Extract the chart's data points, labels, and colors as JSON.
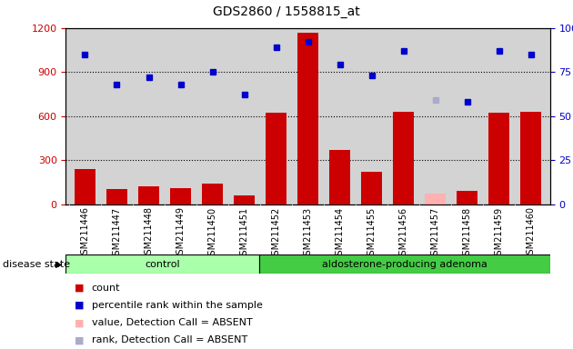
{
  "title": "GDS2860 / 1558815_at",
  "samples": [
    "GSM211446",
    "GSM211447",
    "GSM211448",
    "GSM211449",
    "GSM211450",
    "GSM211451",
    "GSM211452",
    "GSM211453",
    "GSM211454",
    "GSM211455",
    "GSM211456",
    "GSM211457",
    "GSM211458",
    "GSM211459",
    "GSM211460"
  ],
  "count_values": [
    240,
    100,
    120,
    110,
    140,
    60,
    620,
    1170,
    370,
    220,
    630,
    75,
    90,
    620,
    630
  ],
  "count_absent": [
    false,
    false,
    false,
    false,
    false,
    false,
    false,
    false,
    false,
    false,
    false,
    true,
    false,
    false,
    false
  ],
  "rank_values": [
    85,
    68,
    72,
    68,
    75,
    62,
    89,
    92,
    79,
    73,
    87,
    59,
    58,
    87,
    85
  ],
  "rank_absent_idx": [
    11
  ],
  "ctrl_count": 6,
  "group_labels": [
    "control",
    "aldosterone-producing adenoma"
  ],
  "left_ylim": [
    0,
    1200
  ],
  "right_ylim": [
    0,
    100
  ],
  "left_yticks": [
    0,
    300,
    600,
    900,
    1200
  ],
  "right_yticks": [
    0,
    25,
    50,
    75,
    100
  ],
  "bar_color": "#cc0000",
  "bar_absent_color": "#ffb0b0",
  "rank_color": "#0000cc",
  "rank_absent_color": "#aaaacc",
  "bg_color": "#d3d3d3",
  "group_color_control": "#aaffaa",
  "group_color_adenoma": "#44cc44",
  "legend_items": [
    "count",
    "percentile rank within the sample",
    "value, Detection Call = ABSENT",
    "rank, Detection Call = ABSENT"
  ],
  "legend_colors": [
    "#cc0000",
    "#0000cc",
    "#ffb0b0",
    "#aaaacc"
  ]
}
